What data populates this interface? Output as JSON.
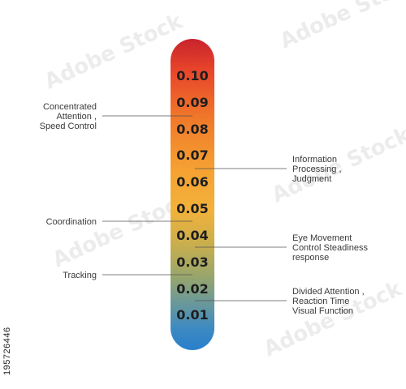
{
  "scale": {
    "ticks": [
      "0.10",
      "0.09",
      "0.08",
      "0.07",
      "0.06",
      "0.05",
      "0.04",
      "0.03",
      "0.02",
      "0.01"
    ],
    "gradient_colors": [
      "#c8232c",
      "#e8452b",
      "#f07a2a",
      "#f5a132",
      "#f2b23a",
      "#c9ae4e",
      "#9aa66a",
      "#6f9a95",
      "#3d8ac2",
      "#2a7fcc"
    ]
  },
  "labels_left": [
    {
      "lines": [
        "Concentrated",
        "Attention ,",
        "Speed Control"
      ]
    },
    {
      "lines": [
        "Coordination"
      ]
    },
    {
      "lines": [
        "Tracking"
      ]
    }
  ],
  "labels_right": [
    {
      "lines": [
        "Information",
        "Processing ,",
        "Judgment"
      ]
    },
    {
      "lines": [
        "Eye Movement",
        "Control Steadiness",
        "response"
      ]
    },
    {
      "lines": [
        "Divided Attention ,",
        "Reaction Time",
        "Visual Function"
      ]
    }
  ],
  "watermark": {
    "text": "Adobe Stock",
    "side_id": "195726446"
  }
}
